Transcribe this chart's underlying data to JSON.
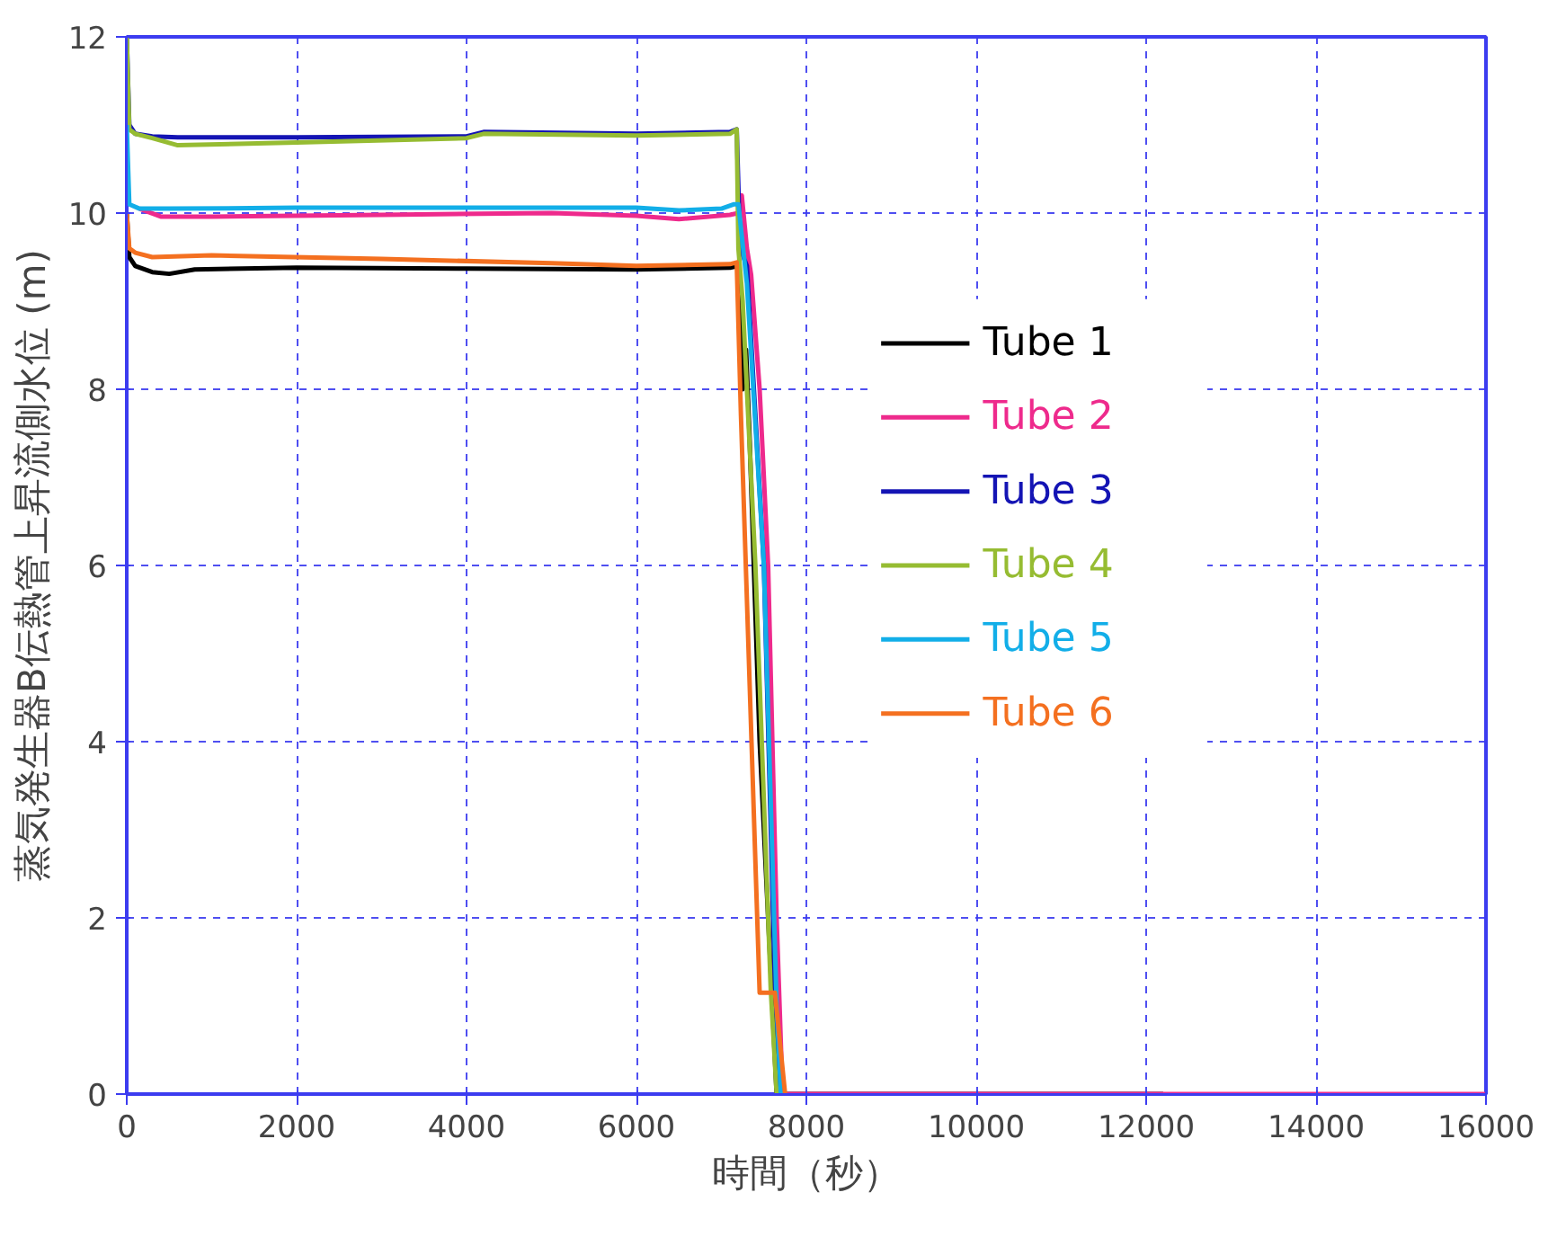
{
  "chart_data": {
    "type": "line",
    "xlabel": "時間（秒）",
    "ylabel": "蒸気発生器B伝熱管上昇流側水位 (m)",
    "xlim": [
      0,
      16000
    ],
    "ylim": [
      0,
      12
    ],
    "xticks": [
      0,
      2000,
      4000,
      6000,
      8000,
      10000,
      12000,
      14000,
      16000
    ],
    "yticks": [
      0,
      2,
      4,
      6,
      8,
      10,
      12
    ],
    "grid": true,
    "legend": "right",
    "line_style": "solid",
    "series": [
      {
        "name": "Tube 1",
        "color": "#000000",
        "x": [
          0,
          30,
          100,
          300,
          500,
          800,
          2000,
          4000,
          6000,
          7100,
          7200,
          7250,
          7290,
          7330,
          7450,
          7600,
          7650,
          11700,
          12200
        ],
        "values": [
          10.0,
          9.5,
          9.4,
          9.33,
          9.31,
          9.36,
          9.38,
          9.37,
          9.36,
          9.38,
          9.4,
          8.0,
          8.45,
          7.5,
          4.0,
          1.0,
          0,
          0,
          0
        ]
      },
      {
        "name": "Tube 2",
        "color": "#ee2a8c",
        "x": [
          150,
          400,
          1000,
          3000,
          5000,
          6000,
          6500,
          7100,
          7200,
          7240,
          7300,
          7350,
          7450,
          7550,
          7650,
          7720,
          12200,
          16000
        ],
        "values": [
          10.05,
          9.96,
          9.96,
          9.98,
          10.0,
          9.97,
          9.93,
          9.98,
          10.0,
          10.2,
          9.6,
          9.3,
          8.0,
          6.0,
          2.0,
          0,
          0,
          0
        ]
      },
      {
        "name": "Tube 3",
        "color": "#1414b4",
        "x": [
          0,
          30,
          100,
          300,
          600,
          2000,
          4000,
          4200,
          6000,
          7100,
          7180,
          7220,
          7300,
          7500,
          7630,
          7700
        ],
        "values": [
          12.0,
          11.0,
          10.9,
          10.87,
          10.86,
          10.86,
          10.87,
          10.92,
          10.9,
          10.92,
          10.95,
          9.6,
          9.4,
          6.0,
          1.2,
          0
        ]
      },
      {
        "name": "Tube 4",
        "color": "#96bc32",
        "x": [
          0,
          30,
          100,
          300,
          600,
          2000,
          4000,
          4200,
          6000,
          7100,
          7180,
          7200,
          7250,
          7400,
          7580,
          7650
        ],
        "values": [
          12.0,
          10.95,
          10.9,
          10.85,
          10.77,
          10.8,
          10.85,
          10.9,
          10.88,
          10.9,
          10.95,
          9.6,
          9.0,
          6.0,
          1.2,
          0
        ]
      },
      {
        "name": "Tube 5",
        "color": "#12aee8",
        "x": [
          0,
          30,
          150,
          500,
          2000,
          4000,
          6000,
          6500,
          7000,
          7150,
          7200,
          7300,
          7500,
          7650,
          7700
        ],
        "values": [
          11.0,
          10.1,
          10.05,
          10.05,
          10.06,
          10.06,
          10.06,
          10.03,
          10.05,
          10.1,
          10.1,
          9.2,
          6.0,
          1.0,
          0
        ]
      },
      {
        "name": "Tube 6",
        "color": "#f47020",
        "x": [
          0,
          30,
          100,
          300,
          1000,
          3000,
          5000,
          6000,
          7100,
          7180,
          7230,
          7450,
          7630,
          7750
        ],
        "values": [
          10.0,
          9.6,
          9.55,
          9.5,
          9.52,
          9.48,
          9.43,
          9.4,
          9.42,
          9.44,
          7.7,
          1.15,
          1.15,
          0
        ]
      }
    ]
  }
}
